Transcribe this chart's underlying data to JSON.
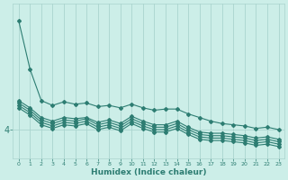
{
  "xlabel": "Humidex (Indice chaleur)",
  "background_color": "#cceee8",
  "line_color": "#2d7d72",
  "grid_color": "#aad4ce",
  "x": [
    0,
    1,
    2,
    3,
    4,
    5,
    6,
    7,
    8,
    9,
    10,
    11,
    12,
    13,
    14,
    15,
    16,
    17,
    18,
    19,
    20,
    21,
    22,
    23
  ],
  "series": [
    [
      8.5,
      6.5,
      5.2,
      5.0,
      5.15,
      5.05,
      5.1,
      4.95,
      5.0,
      4.9,
      5.05,
      4.9,
      4.8,
      4.85,
      4.85,
      4.65,
      4.5,
      4.35,
      4.25,
      4.2,
      4.15,
      4.05,
      4.1,
      4.0
    ],
    [
      5.2,
      4.9,
      4.5,
      4.35,
      4.5,
      4.45,
      4.5,
      4.3,
      4.4,
      4.25,
      4.55,
      4.35,
      4.2,
      4.2,
      4.35,
      4.1,
      3.9,
      3.85,
      3.85,
      3.8,
      3.75,
      3.65,
      3.7,
      3.6
    ],
    [
      5.1,
      4.8,
      4.4,
      4.25,
      4.4,
      4.35,
      4.45,
      4.2,
      4.3,
      4.15,
      4.45,
      4.25,
      4.1,
      4.1,
      4.25,
      4.0,
      3.8,
      3.75,
      3.75,
      3.7,
      3.65,
      3.55,
      3.6,
      3.5
    ],
    [
      5.0,
      4.7,
      4.3,
      4.15,
      4.3,
      4.25,
      4.35,
      4.1,
      4.2,
      4.05,
      4.35,
      4.15,
      4.0,
      4.0,
      4.15,
      3.9,
      3.7,
      3.65,
      3.65,
      3.6,
      3.55,
      3.45,
      3.5,
      3.4
    ],
    [
      4.9,
      4.6,
      4.2,
      4.05,
      4.2,
      4.15,
      4.25,
      4.0,
      4.1,
      3.95,
      4.25,
      4.05,
      3.9,
      3.9,
      4.05,
      3.8,
      3.6,
      3.55,
      3.55,
      3.5,
      3.45,
      3.35,
      3.4,
      3.3
    ]
  ],
  "yticks": [
    4
  ],
  "ylim": [
    2.8,
    9.2
  ],
  "xlim": [
    -0.5,
    23.5
  ]
}
